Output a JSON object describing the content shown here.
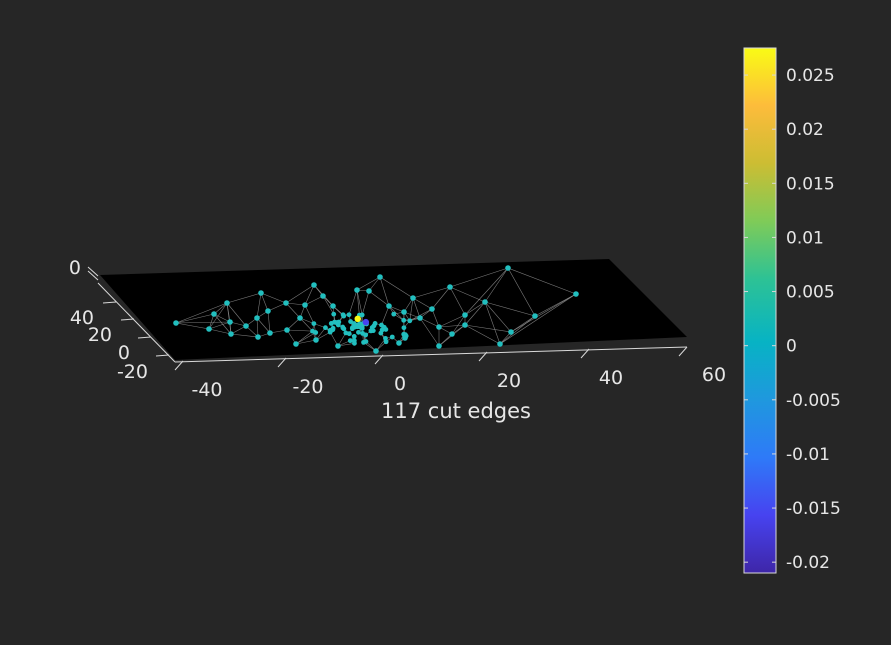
{
  "chart_data": {
    "type": "scatter",
    "title": "",
    "xlabel": "117 cut edges",
    "ylabel": "",
    "x_ticks": [
      "-40",
      "-20",
      "0",
      "20",
      "40",
      "60"
    ],
    "y_ticks": [
      "-20",
      "0",
      "20",
      "40"
    ],
    "z_ticks": [
      "0"
    ],
    "xlim": [
      -45,
      60
    ],
    "ylim": [
      -25,
      45
    ],
    "colorbar": {
      "ticks": [
        "0.025",
        "0.02",
        "0.015",
        "0.01",
        "0.005",
        "0",
        "-0.005",
        "-0.01",
        "-0.015",
        "-0.02"
      ],
      "range": [
        -0.021,
        0.0275
      ],
      "colormap": "parula",
      "colors": [
        "#3e26a8",
        "#4743f0",
        "#2e7af8",
        "#1f98de",
        "#07b3c4",
        "#2dc295",
        "#7fcb58",
        "#ccbd33",
        "#fdbc3b",
        "#f9fb15"
      ]
    },
    "marker_color": "#22bfbf",
    "background_color": "#262626",
    "plane_color": "#000000",
    "edge_color": "#9a9a9a",
    "highlight_points": [
      {
        "x": -1.5,
        "y": 2,
        "value": 0.027
      },
      {
        "x": -0.5,
        "y": -1,
        "value": -0.018
      }
    ]
  }
}
